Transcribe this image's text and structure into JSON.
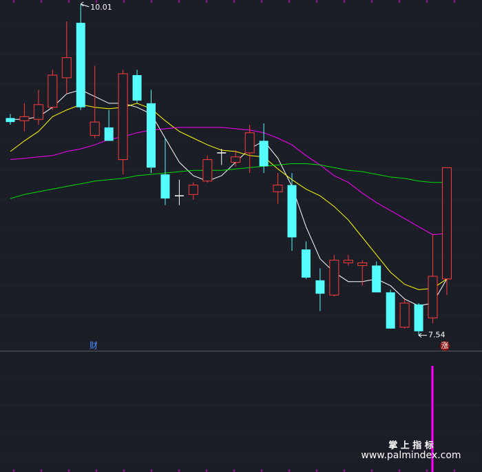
{
  "chart_data": {
    "type": "candlestick",
    "open": [
      9.16,
      9.14,
      9.15,
      9.24,
      9.46,
      9.87,
      9.03,
      9.09,
      8.85,
      9.48,
      9.27,
      8.74,
      8.58,
      8.59,
      8.69,
      8.9,
      8.83,
      8.9,
      8.99,
      8.61,
      8.66,
      8.18,
      7.95,
      7.84,
      8.08,
      8.06,
      8.06,
      7.86,
      7.6,
      7.77,
      7.67,
      7.96
    ],
    "high": [
      9.19,
      9.27,
      9.37,
      9.52,
      9.88,
      10.01,
      9.55,
      9.22,
      9.52,
      9.52,
      9.37,
      9.01,
      8.7,
      8.68,
      8.88,
      8.93,
      8.92,
      9.11,
      9.12,
      8.75,
      8.75,
      8.24,
      8.04,
      8.14,
      8.14,
      8.1,
      8.09,
      7.88,
      7.81,
      7.78,
      8.29,
      8.79
    ],
    "low": [
      9.11,
      9.06,
      9.11,
      9.22,
      9.34,
      9.22,
      9.01,
      8.99,
      8.74,
      9.27,
      8.75,
      8.51,
      8.51,
      8.55,
      8.68,
      8.81,
      8.8,
      8.75,
      8.75,
      8.52,
      8.17,
      7.96,
      7.72,
      7.83,
      8.06,
      7.91,
      7.86,
      7.59,
      7.59,
      7.54,
      7.63,
      7.84
    ],
    "close": [
      9.13,
      9.17,
      9.26,
      9.48,
      9.61,
      9.24,
      9.13,
      8.99,
      9.49,
      9.29,
      8.79,
      8.56,
      8.58,
      8.66,
      8.85,
      8.9,
      8.87,
      9.05,
      8.8,
      8.66,
      8.27,
      7.97,
      7.85,
      8.1,
      8.1,
      8.08,
      7.86,
      7.59,
      7.78,
      7.57,
      7.98,
      8.79
    ],
    "up_color": "#ff3c3c",
    "down_color": "#54fcfc",
    "doji_color": "#ffffff",
    "ylim": [
      7.43,
      10.04
    ],
    "moving_averages": [
      {
        "color": "#ffffff",
        "values": [
          9.15,
          9.15,
          9.17,
          9.24,
          9.34,
          9.37,
          9.32,
          9.27,
          9.27,
          9.24,
          9.19,
          9.01,
          8.83,
          8.73,
          8.69,
          8.73,
          8.83,
          8.93,
          8.99,
          8.86,
          8.65,
          8.35,
          8.11,
          8.01,
          7.94,
          7.94,
          7.96,
          7.91,
          7.81,
          7.76,
          7.78,
          7.96
        ]
      },
      {
        "color": "#ffff00",
        "values": [
          8.91,
          8.99,
          9.06,
          9.17,
          9.22,
          9.26,
          9.24,
          9.23,
          9.24,
          9.27,
          9.23,
          9.14,
          9.06,
          9.01,
          8.96,
          8.92,
          8.91,
          8.88,
          8.87,
          8.78,
          8.7,
          8.63,
          8.58,
          8.5,
          8.4,
          8.27,
          8.14,
          8.01,
          7.92,
          7.88,
          7.89,
          7.96
        ]
      },
      {
        "color": "#ff00ff",
        "values": [
          8.85,
          8.86,
          8.87,
          8.88,
          8.91,
          8.93,
          8.96,
          9.0,
          9.02,
          9.05,
          9.07,
          9.08,
          9.09,
          9.09,
          9.09,
          9.09,
          9.08,
          9.07,
          9.05,
          9.01,
          8.96,
          8.88,
          8.81,
          8.73,
          8.68,
          8.6,
          8.53,
          8.47,
          8.41,
          8.35,
          8.29,
          8.3
        ]
      },
      {
        "color": "#00e000",
        "values": [
          8.56,
          8.59,
          8.61,
          8.63,
          8.65,
          8.67,
          8.69,
          8.7,
          8.71,
          8.73,
          8.74,
          8.75,
          8.76,
          8.77,
          8.77,
          8.77,
          8.78,
          8.79,
          8.8,
          8.81,
          8.82,
          8.82,
          8.81,
          8.79,
          8.77,
          8.76,
          8.74,
          8.72,
          8.71,
          8.69,
          8.68,
          8.68
        ]
      }
    ],
    "markers": [
      "财",
      "涨"
    ],
    "watermark": [
      "掌 上 指 标",
      "www.palmindex.com"
    ]
  }
}
